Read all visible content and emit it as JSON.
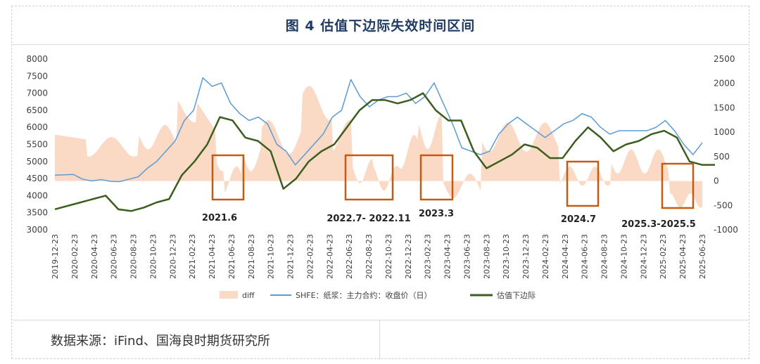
{
  "header": {
    "title": "图  4  估值下边际失效时间区间"
  },
  "footer": {
    "source": "数据来源：iFind、国海良时期货研究所"
  },
  "chart_data": {
    "type": "line",
    "colors": {
      "diff": "#fad9c5",
      "shfe": "#5b9bd5",
      "boundary": "#3b5e1f",
      "box": "#c55a11"
    },
    "y_left": {
      "min": 3000,
      "max": 8000,
      "ticks": [
        3000,
        3500,
        4000,
        4500,
        5000,
        5500,
        6000,
        6500,
        7000,
        7500,
        8000
      ]
    },
    "y_right": {
      "min": -1000,
      "max": 2500,
      "ticks": [
        -1000,
        -500,
        0,
        500,
        1000,
        1500,
        2000,
        2500
      ]
    },
    "x_ticks": [
      "2019-12-23",
      "2020-02-23",
      "2020-04-23",
      "2020-06-23",
      "2020-08-23",
      "2020-10-23",
      "2020-12-23",
      "2021-02-23",
      "2021-04-23",
      "2021-06-23",
      "2021-08-23",
      "2021-10-23",
      "2021-12-23",
      "2022-02-23",
      "2022-04-23",
      "2022-06-23",
      "2022-08-23",
      "2022-10-23",
      "2022-12-23",
      "2023-02-23",
      "2023-04-23",
      "2023-06-23",
      "2023-08-23",
      "2023-10-23",
      "2023-12-23",
      "2024-02-23",
      "2024-04-23",
      "2024-06-23",
      "2024-08-23",
      "2024-10-23",
      "2024-12-23",
      "2025-02-23",
      "2025-04-23",
      "2025-06-23"
    ],
    "legend": [
      "diff",
      "SHFE：纸浆：主力合约：收盘价（日）",
      "估值下边际"
    ],
    "series": {
      "shfe": [
        [
          0,
          4600
        ],
        [
          2,
          4620
        ],
        [
          3,
          4480
        ],
        [
          4,
          4430
        ],
        [
          5,
          4470
        ],
        [
          6,
          4420
        ],
        [
          7,
          4410
        ],
        [
          8,
          4480
        ],
        [
          9,
          4550
        ],
        [
          10,
          4800
        ],
        [
          11,
          5000
        ],
        [
          12,
          5300
        ],
        [
          13,
          5600
        ],
        [
          14,
          6200
        ],
        [
          15,
          6500
        ],
        [
          16,
          7450
        ],
        [
          17,
          7200
        ],
        [
          18,
          7300
        ],
        [
          19,
          6700
        ],
        [
          20,
          6400
        ],
        [
          21,
          6200
        ],
        [
          22,
          6300
        ],
        [
          23,
          6100
        ],
        [
          24,
          5500
        ],
        [
          25,
          5300
        ],
        [
          26,
          4900
        ],
        [
          27,
          5200
        ],
        [
          28,
          5500
        ],
        [
          29,
          5800
        ],
        [
          30,
          6300
        ],
        [
          31,
          6500
        ],
        [
          32,
          7400
        ],
        [
          33,
          6900
        ],
        [
          34,
          6600
        ],
        [
          35,
          6800
        ],
        [
          36,
          6900
        ],
        [
          37,
          6900
        ],
        [
          38,
          7000
        ],
        [
          39,
          6700
        ],
        [
          40,
          6900
        ],
        [
          41,
          7300
        ],
        [
          42,
          6700
        ],
        [
          43,
          6100
        ],
        [
          44,
          5400
        ],
        [
          45,
          5300
        ],
        [
          46,
          5200
        ],
        [
          47,
          5300
        ],
        [
          48,
          5800
        ],
        [
          49,
          6100
        ],
        [
          50,
          6300
        ],
        [
          51,
          6100
        ],
        [
          52,
          5900
        ],
        [
          53,
          5700
        ],
        [
          54,
          5900
        ],
        [
          55,
          6100
        ],
        [
          56,
          6200
        ],
        [
          57,
          6400
        ],
        [
          58,
          6300
        ],
        [
          59,
          6000
        ],
        [
          60,
          5800
        ],
        [
          61,
          5900
        ],
        [
          62,
          5900
        ],
        [
          63,
          5900
        ],
        [
          64,
          5900
        ],
        [
          65,
          6000
        ],
        [
          66,
          6200
        ],
        [
          67,
          5900
        ],
        [
          68,
          5500
        ],
        [
          69,
          5200
        ],
        [
          70,
          5550
        ]
      ],
      "boundary": [
        [
          0,
          3600
        ],
        [
          2,
          3800
        ],
        [
          3,
          3900
        ],
        [
          4,
          4000
        ],
        [
          5,
          3600
        ],
        [
          6,
          3550
        ],
        [
          7,
          3650
        ],
        [
          8,
          3800
        ],
        [
          9,
          3900
        ],
        [
          10,
          4600
        ],
        [
          11,
          5000
        ],
        [
          12,
          5500
        ],
        [
          13,
          6300
        ],
        [
          14,
          6200
        ],
        [
          15,
          5700
        ],
        [
          16,
          5600
        ],
        [
          17,
          5300
        ],
        [
          18,
          4200
        ],
        [
          19,
          4500
        ],
        [
          20,
          5000
        ],
        [
          21,
          5300
        ],
        [
          22,
          5500
        ],
        [
          23,
          6000
        ],
        [
          24,
          6500
        ],
        [
          25,
          6800
        ],
        [
          26,
          6800
        ],
        [
          27,
          6700
        ],
        [
          28,
          6800
        ],
        [
          29,
          7000
        ],
        [
          30,
          6500
        ],
        [
          31,
          6200
        ],
        [
          32,
          6200
        ],
        [
          33,
          5300
        ],
        [
          34,
          4800
        ],
        [
          35,
          5000
        ],
        [
          36,
          5200
        ],
        [
          37,
          5500
        ],
        [
          38,
          5400
        ],
        [
          39,
          5100
        ],
        [
          40,
          5100
        ],
        [
          41,
          5600
        ],
        [
          42,
          6000
        ],
        [
          43,
          5700
        ],
        [
          44,
          5300
        ],
        [
          45,
          5500
        ],
        [
          46,
          5600
        ],
        [
          47,
          5800
        ],
        [
          48,
          5900
        ],
        [
          49,
          5700
        ],
        [
          50,
          5000
        ],
        [
          51,
          4900
        ],
        [
          52,
          4900
        ]
      ],
      "diff_note": "area histogram, right axis"
    },
    "annotations": [
      {
        "label": "2021.6",
        "x": "2021-06"
      },
      {
        "label": "2022.7- 2022.11",
        "x": "2022-07"
      },
      {
        "label": "2023.3",
        "x": "2023-03"
      },
      {
        "label": "2024.7",
        "x": "2024-07"
      },
      {
        "label": "2025.3-2025.5",
        "x": "2025-03"
      }
    ]
  }
}
